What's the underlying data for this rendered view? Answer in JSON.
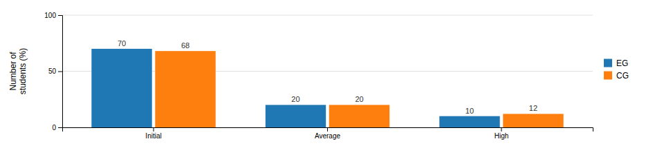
{
  "chart_data": {
    "type": "bar",
    "categories": [
      "Initial",
      "Average",
      "High"
    ],
    "series": [
      {
        "name": "EG",
        "values": [
          70,
          20,
          10
        ]
      },
      {
        "name": "CG",
        "values": [
          68,
          20,
          12
        ]
      }
    ],
    "ylabel": "Number of\nstudents (%)",
    "ylim": [
      0,
      100
    ],
    "yticks": [
      0,
      50,
      100
    ],
    "grid": true,
    "legend": "right",
    "data_labels": true
  }
}
